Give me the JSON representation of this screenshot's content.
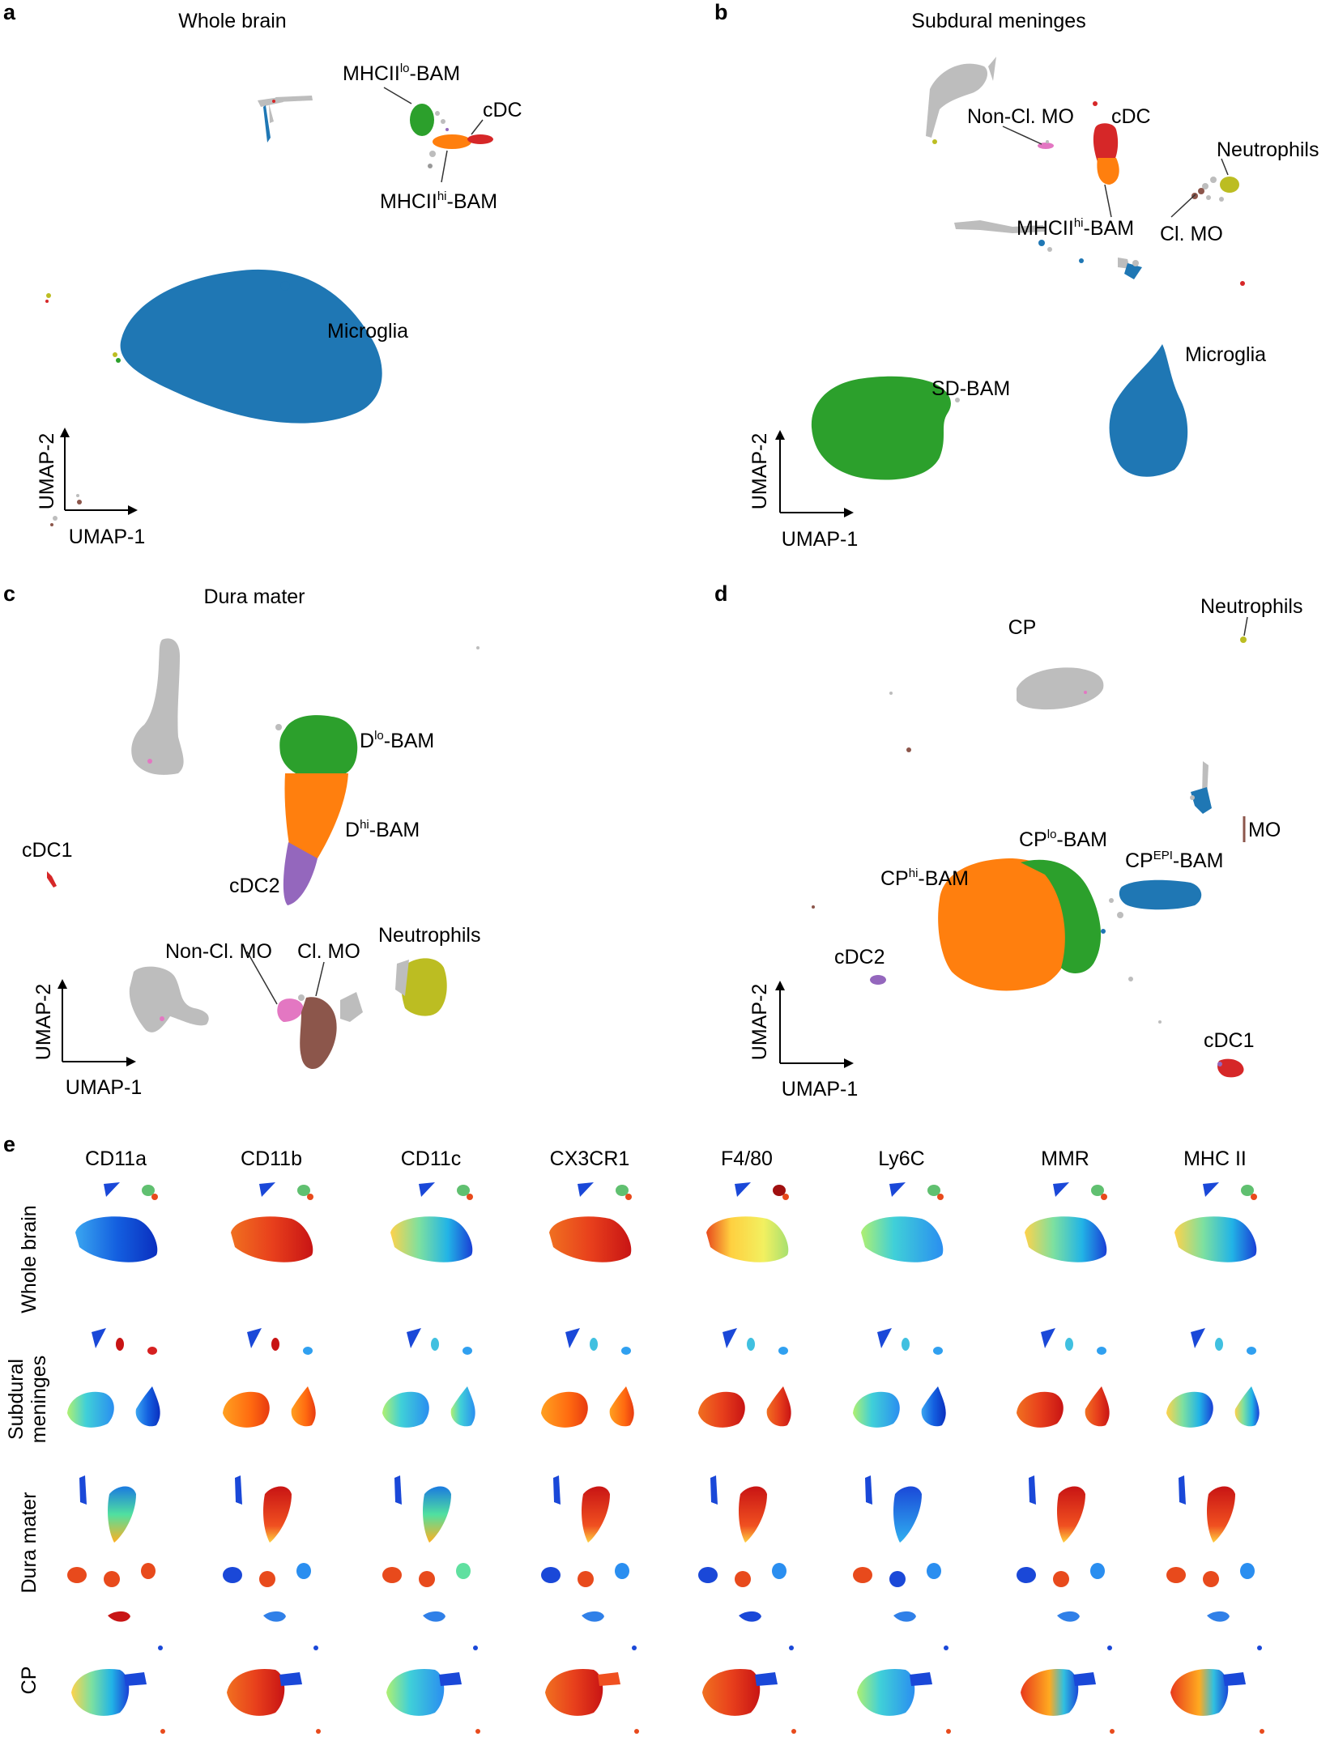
{
  "colors": {
    "microglia": "#1f77b4",
    "green": "#2ca02c",
    "orange": "#ff7f0e",
    "red": "#d62728",
    "purple": "#9467bd",
    "pink": "#e377c2",
    "brown": "#8c564b",
    "olive": "#bcbd22",
    "grey": "#bdbdbd",
    "pointer": "#333333"
  },
  "axes": {
    "x": "UMAP-1",
    "y": "UMAP-2"
  },
  "panel_a": {
    "letter": "a",
    "title": "Whole brain",
    "labels": {
      "mhclo_base": "MHCII",
      "mhclo_sup": "lo",
      "mhclo_tail": "-BAM",
      "cdc": "cDC",
      "mhchi_base": "MHCII",
      "mhchi_sup": "hi",
      "mhchi_tail": "-BAM",
      "microglia": "Microglia"
    }
  },
  "panel_b": {
    "letter": "b",
    "title": "Subdural meninges",
    "labels": {
      "noncl": "Non-Cl. MO",
      "cdc": "cDC",
      "neutrophils": "Neutrophils",
      "mhchi_base": "MHCII",
      "mhchi_sup": "hi",
      "mhchi_tail": "-BAM",
      "clmo": "Cl. MO",
      "sdbam": "SD-BAM",
      "microglia": "Microglia"
    }
  },
  "panel_c": {
    "letter": "c",
    "title": "Dura mater",
    "labels": {
      "dlo_base": "D",
      "dlo_sup": "lo",
      "dlo_tail": "-BAM",
      "dhi_base": "D",
      "dhi_sup": "hi",
      "dhi_tail": "-BAM",
      "cdc1": "cDC1",
      "cdc2": "cDC2",
      "noncl": "Non-Cl. MO",
      "clmo": "Cl. MO",
      "neutrophils": "Neutrophils"
    }
  },
  "panel_d": {
    "letter": "d",
    "title": "CP",
    "labels": {
      "neutrophils": "Neutrophils",
      "cplo_base": "CP",
      "cplo_sup": "lo",
      "cplo_tail": "-BAM",
      "mo": "MO",
      "cpepi_base": "CP",
      "cpepi_sup": "EPI",
      "cpepi_tail": "-BAM",
      "cphi_base": "CP",
      "cphi_sup": "hi",
      "cphi_tail": "-BAM",
      "cdc2": "cDC2",
      "cdc1": "cDC1"
    }
  },
  "panel_e": {
    "letter": "e",
    "markers": [
      "CD11a",
      "CD11b",
      "CD11c",
      "CX3CR1",
      "F4/80",
      "Ly6C",
      "MMR",
      "MHC II"
    ],
    "rows": [
      {
        "lines": [
          "Whole brain"
        ]
      },
      {
        "lines": [
          "Subdural",
          "meninges"
        ]
      },
      {
        "lines": [
          "Dura mater"
        ]
      },
      {
        "lines": [
          "CP"
        ]
      }
    ]
  }
}
